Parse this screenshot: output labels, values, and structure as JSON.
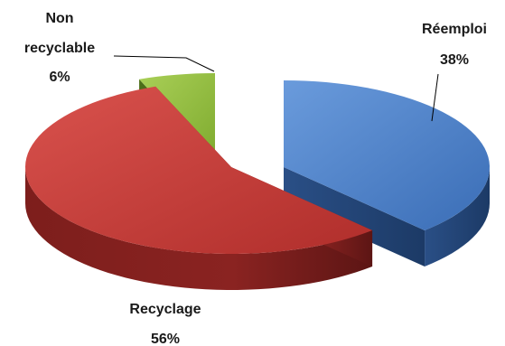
{
  "chart_data": {
    "type": "pie",
    "style": "3d-exploded",
    "slices": [
      {
        "name": "Réemploi",
        "value": 38,
        "label_pct": "38%",
        "color": "#4a7ec9"
      },
      {
        "name": "Recyclage",
        "value": 56,
        "label_pct": "56%",
        "color": "#c23a36"
      },
      {
        "name": "Non recyclable",
        "label_lines": [
          "Non",
          "recyclable"
        ],
        "value": 6,
        "label_pct": "6%",
        "color": "#8fbb3a"
      }
    ],
    "legend": "none"
  }
}
